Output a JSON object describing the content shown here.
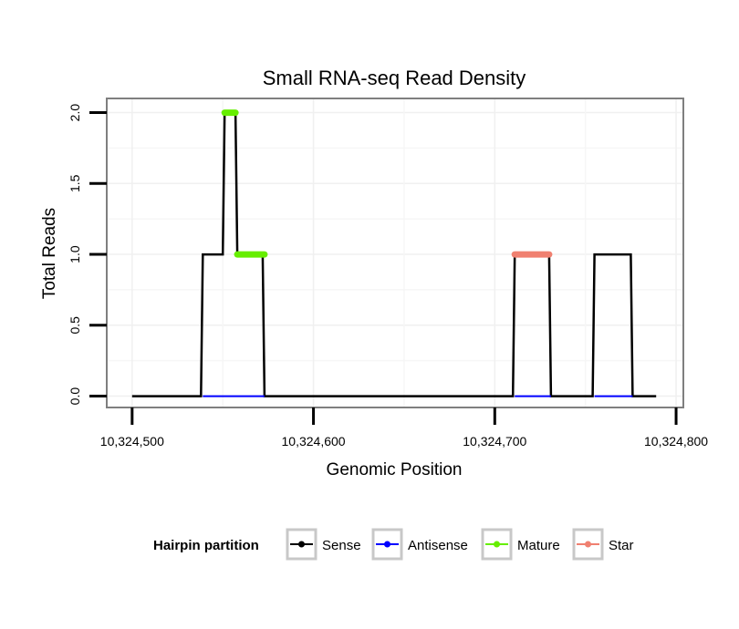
{
  "chart_data": {
    "type": "line",
    "title": "Small RNA-seq Read Density",
    "xlabel": "Genomic Position",
    "ylabel": "Total Reads",
    "xlim": [
      10324486,
      10324804
    ],
    "ylim": [
      -0.08,
      2.1
    ],
    "x_ticks": [
      10324500,
      10324600,
      10324700,
      10324800
    ],
    "x_tick_labels": [
      "10,324,500",
      "10,324,600",
      "10,324,700",
      "10,324,800"
    ],
    "y_ticks": [
      0,
      0.5,
      1,
      1.5,
      2
    ],
    "y_tick_labels": [
      "0.0",
      "0.5",
      "1.0",
      "1.5",
      "2.0"
    ],
    "grid": true,
    "legend": {
      "title": "Hairpin partition",
      "position": "bottom",
      "entries": [
        "Sense",
        "Antisense",
        "Mature",
        "Star"
      ]
    },
    "colors": {
      "Sense": "#000000",
      "Antisense": "#0000ff",
      "Mature": "#66ee00",
      "Star": "#f08070"
    },
    "series": [
      {
        "name": "Sense",
        "x": [
          10324500,
          10324538,
          10324539,
          10324550,
          10324551,
          10324557,
          10324558,
          10324572,
          10324573,
          10324710,
          10324711,
          10324730,
          10324731,
          10324754,
          10324755,
          10324775,
          10324776,
          10324789
        ],
        "y": [
          0,
          0,
          1,
          1,
          2,
          2,
          1,
          1,
          0,
          0,
          1,
          1,
          0,
          0,
          1,
          1,
          0,
          0
        ]
      },
      {
        "name": "Antisense",
        "segments": [
          {
            "x": [
              10324539,
              10324573
            ],
            "y": [
              0,
              0
            ]
          },
          {
            "x": [
              10324711,
              10324731
            ],
            "y": [
              0,
              0
            ]
          },
          {
            "x": [
              10324755,
              10324776
            ],
            "y": [
              0,
              0
            ]
          }
        ]
      },
      {
        "name": "Mature",
        "segments": [
          {
            "x": [
              10324551,
              10324557
            ],
            "y": [
              2,
              2
            ]
          },
          {
            "x": [
              10324558,
              10324573
            ],
            "y": [
              1,
              1
            ]
          }
        ]
      },
      {
        "name": "Star",
        "segments": [
          {
            "x": [
              10324711,
              10324730
            ],
            "y": [
              1,
              1
            ]
          }
        ]
      }
    ]
  }
}
